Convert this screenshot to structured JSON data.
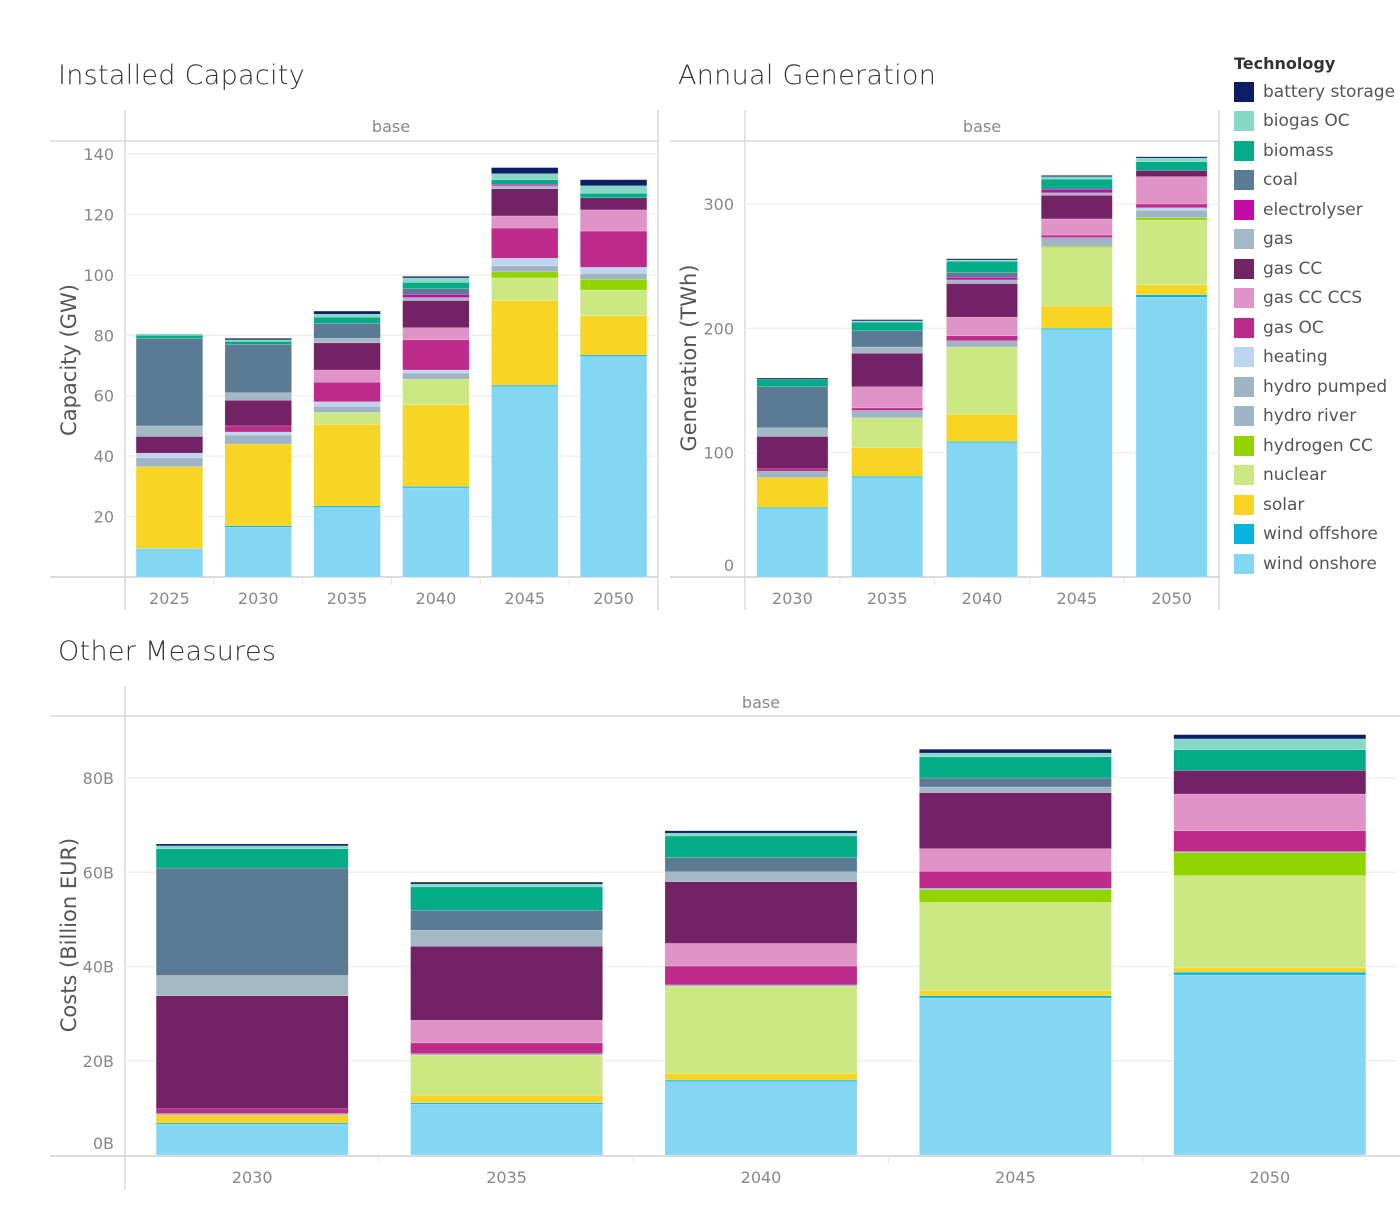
{
  "titles": {
    "capacity": "Installed Capacity",
    "generation": "Annual Generation",
    "costs": "Other Measures"
  },
  "legend": {
    "title": "Technology",
    "items": [
      {
        "name": "battery storage",
        "color": "#0b1f66"
      },
      {
        "name": "biogas OC",
        "color": "#86d9c6"
      },
      {
        "name": "biomass",
        "color": "#03ab87"
      },
      {
        "name": "coal",
        "color": "#5a7b93"
      },
      {
        "name": "electrolyser",
        "color": "#c30aa5"
      },
      {
        "name": "gas",
        "color": "#a3b9c6"
      },
      {
        "name": "gas CC",
        "color": "#732266"
      },
      {
        "name": "gas CC CCS",
        "color": "#e093c7"
      },
      {
        "name": "gas OC",
        "color": "#bd2b8a"
      },
      {
        "name": "heating",
        "color": "#bcd5f0"
      },
      {
        "name": "hydro pumped",
        "color": "#a0b4c4"
      },
      {
        "name": "hydro river",
        "color": "#9fb5c5"
      },
      {
        "name": "hydrogen CC",
        "color": "#91d400"
      },
      {
        "name": "nuclear",
        "color": "#cbe882"
      },
      {
        "name": "solar",
        "color": "#f8d424"
      },
      {
        "name": "wind offshore",
        "color": "#05b5e0"
      },
      {
        "name": "wind onshore",
        "color": "#84d7f3"
      }
    ]
  },
  "chart_data": [
    {
      "type": "bar",
      "stacked": true,
      "title": "Installed Capacity",
      "header": "base",
      "xlabel": "",
      "ylabel": "Capacity (GW)",
      "ylim": [
        0,
        140
      ],
      "yticks": [
        20,
        40,
        60,
        80,
        100,
        120,
        140
      ],
      "ytick_labels": [
        "20",
        "40",
        "60",
        "80",
        "100",
        "120",
        "140"
      ],
      "categories": [
        "2025",
        "2030",
        "2035",
        "2040",
        "2045",
        "2050"
      ],
      "series": [
        {
          "name": "wind onshore",
          "values": [
            9.5,
            16.5,
            23,
            29.5,
            63,
            73
          ]
        },
        {
          "name": "wind offshore",
          "values": [
            0,
            0.5,
            0.5,
            0.5,
            0.5,
            0.5
          ]
        },
        {
          "name": "solar",
          "values": [
            27,
            27,
            27,
            27,
            28,
            13
          ]
        },
        {
          "name": "nuclear",
          "values": [
            0,
            0,
            4,
            8.5,
            7.5,
            8.5
          ]
        },
        {
          "name": "hydrogen CC",
          "values": [
            0,
            0,
            0,
            0,
            2,
            3.5
          ]
        },
        {
          "name": "hydro river",
          "values": [
            3,
            3,
            2,
            2,
            2,
            2
          ]
        },
        {
          "name": "hydro pumped",
          "values": [
            0,
            0,
            0,
            0,
            0,
            0
          ]
        },
        {
          "name": "heating",
          "values": [
            1.5,
            1,
            1.5,
            1,
            2.5,
            2
          ]
        },
        {
          "name": "gas OC",
          "values": [
            0,
            2,
            6.5,
            10,
            10,
            12
          ]
        },
        {
          "name": "gas CC CCS",
          "values": [
            0,
            0,
            4,
            4,
            4,
            7
          ]
        },
        {
          "name": "gas CC",
          "values": [
            5.5,
            8.5,
            9,
            9,
            9,
            4
          ]
        },
        {
          "name": "gas",
          "values": [
            3.5,
            2.5,
            1.5,
            1,
            1,
            0
          ]
        },
        {
          "name": "electrolyser",
          "values": [
            0,
            0,
            0,
            1,
            0.5,
            0
          ]
        },
        {
          "name": "coal",
          "values": [
            29,
            16,
            5,
            2,
            0,
            0
          ]
        },
        {
          "name": "biomass",
          "values": [
            1,
            1,
            2,
            2,
            1.5,
            1.5
          ]
        },
        {
          "name": "biogas OC",
          "values": [
            0.5,
            0.5,
            1,
            1.5,
            2,
            2.5
          ]
        },
        {
          "name": "battery storage",
          "values": [
            0,
            0.5,
            1,
            0.5,
            2,
            2
          ]
        }
      ]
    },
    {
      "type": "bar",
      "stacked": true,
      "title": "Annual Generation",
      "header": "base",
      "xlabel": "",
      "ylabel": "Generation (TWh)",
      "ylim": [
        0,
        340
      ],
      "yticks": [
        0,
        100,
        200,
        300
      ],
      "ytick_labels": [
        "0",
        "100",
        "200",
        "300"
      ],
      "categories": [
        "2030",
        "2035",
        "2040",
        "2045",
        "2050"
      ],
      "series": [
        {
          "name": "wind onshore",
          "values": [
            55,
            80,
            108,
            199,
            225
          ]
        },
        {
          "name": "wind offshore",
          "values": [
            1,
            1,
            1,
            1,
            2
          ]
        },
        {
          "name": "solar",
          "values": [
            24,
            23,
            22,
            18,
            8
          ]
        },
        {
          "name": "nuclear",
          "values": [
            0,
            24,
            54,
            47,
            52
          ]
        },
        {
          "name": "hydrogen CC",
          "values": [
            0,
            0,
            0,
            1,
            2
          ]
        },
        {
          "name": "hydro river",
          "values": [
            5,
            6,
            5,
            7,
            6
          ]
        },
        {
          "name": "heating",
          "values": [
            0,
            0,
            0,
            0,
            2
          ]
        },
        {
          "name": "gas OC",
          "values": [
            2,
            2,
            4,
            2,
            3
          ]
        },
        {
          "name": "gas CC CCS",
          "values": [
            0,
            17,
            15,
            13,
            22
          ]
        },
        {
          "name": "gas CC",
          "values": [
            26,
            27,
            27,
            19,
            5
          ]
        },
        {
          "name": "gas",
          "values": [
            7,
            5,
            3,
            2,
            0
          ]
        },
        {
          "name": "electrolyser",
          "values": [
            0,
            0,
            2,
            3,
            0
          ]
        },
        {
          "name": "coal",
          "values": [
            33,
            13,
            4,
            0,
            0
          ]
        },
        {
          "name": "biomass",
          "values": [
            6,
            7,
            9,
            8,
            7
          ]
        },
        {
          "name": "biogas OC",
          "values": [
            0,
            1,
            1,
            2,
            3
          ]
        },
        {
          "name": "battery storage",
          "values": [
            1,
            1,
            1,
            1,
            1
          ]
        }
      ]
    },
    {
      "type": "bar",
      "stacked": true,
      "title": "Other Measures",
      "header": "base",
      "xlabel": "",
      "ylabel": "Costs (Billion EUR)",
      "ylim": [
        0,
        90
      ],
      "yticks": [
        0,
        20,
        40,
        60,
        80
      ],
      "ytick_labels": [
        "0B",
        "20B",
        "40B",
        "60B",
        "80B"
      ],
      "categories": [
        "2030",
        "2035",
        "2040",
        "2045",
        "2050"
      ],
      "series": [
        {
          "name": "wind onshore",
          "values": [
            6.5,
            10.8,
            15.6,
            33.3,
            38.2
          ]
        },
        {
          "name": "wind offshore",
          "values": [
            0.3,
            0.3,
            0.3,
            0.5,
            0.6
          ]
        },
        {
          "name": "solar",
          "values": [
            1.7,
            1.6,
            1.4,
            1.1,
            0.9
          ]
        },
        {
          "name": "nuclear",
          "values": [
            0,
            8.5,
            18.5,
            18.7,
            19.6
          ]
        },
        {
          "name": "hydrogen CC",
          "values": [
            0,
            0,
            0,
            2.7,
            4.9
          ]
        },
        {
          "name": "hydro river",
          "values": [
            0.3,
            0.3,
            0.3,
            0.3,
            0.2
          ]
        },
        {
          "name": "gas OC",
          "values": [
            1,
            2.3,
            4,
            3.6,
            4.4
          ]
        },
        {
          "name": "gas CC CCS",
          "values": [
            0,
            4.8,
            4.8,
            4.8,
            7.8
          ]
        },
        {
          "name": "gas CC",
          "values": [
            24,
            15.7,
            13.1,
            11.9,
            5
          ]
        },
        {
          "name": "gas",
          "values": [
            4.3,
            3.4,
            2.1,
            1.2,
            0
          ]
        },
        {
          "name": "coal",
          "values": [
            22.8,
            4.2,
            3,
            1.9,
            0
          ]
        },
        {
          "name": "biomass",
          "values": [
            4.1,
            5,
            4.6,
            4.5,
            4.4
          ]
        },
        {
          "name": "biogas OC",
          "values": [
            0.6,
            0.6,
            0.6,
            0.8,
            2.3
          ]
        },
        {
          "name": "battery storage",
          "values": [
            0.4,
            0.4,
            0.5,
            0.8,
            0.9
          ]
        }
      ]
    }
  ]
}
